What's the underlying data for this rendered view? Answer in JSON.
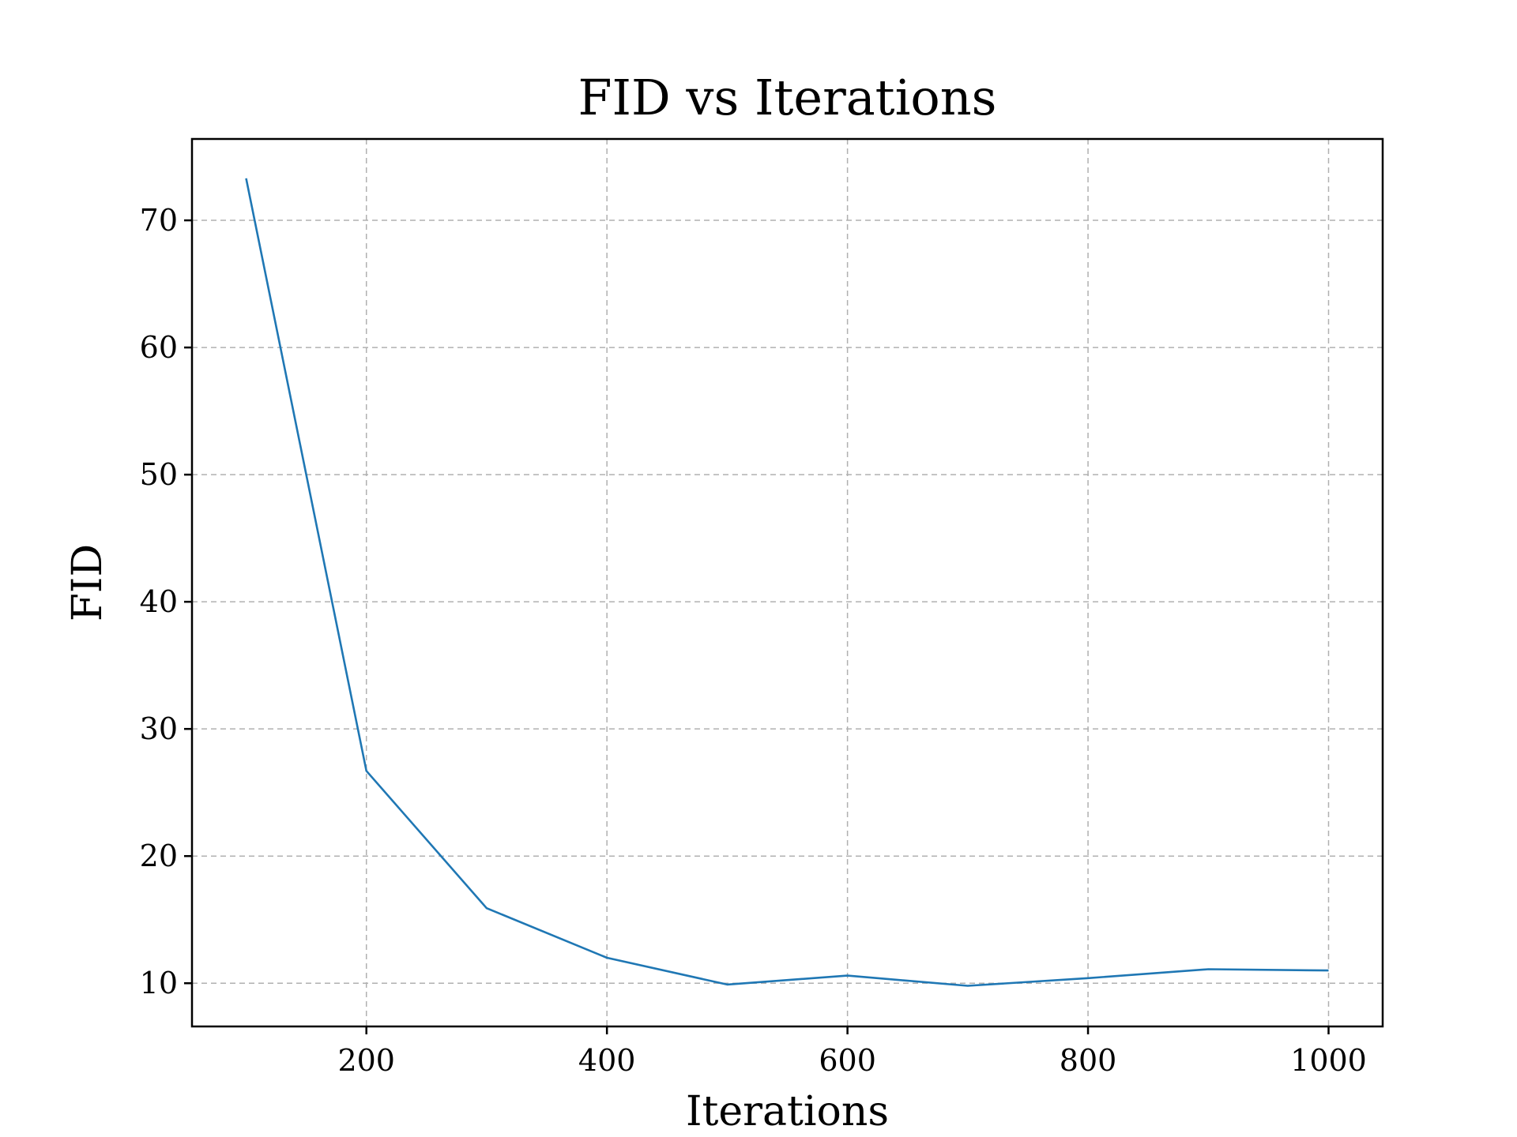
{
  "chart_data": {
    "type": "line",
    "title": "FID vs Iterations",
    "xlabel": "Iterations",
    "ylabel": "FID",
    "x": [
      100,
      200,
      300,
      400,
      500,
      600,
      700,
      800,
      900,
      1000
    ],
    "series": [
      {
        "values": [
          73.3,
          26.7,
          15.9,
          12.0,
          9.9,
          10.6,
          9.8,
          10.4,
          11.1,
          11.0
        ],
        "color": "#1f77b4"
      }
    ],
    "xlim": [
      55,
      1045
    ],
    "ylim": [
      6.6,
      76.4
    ],
    "xticks": [
      200,
      400,
      600,
      800,
      1000
    ],
    "yticks": [
      10,
      20,
      30,
      40,
      50,
      60,
      70
    ],
    "grid": true
  }
}
